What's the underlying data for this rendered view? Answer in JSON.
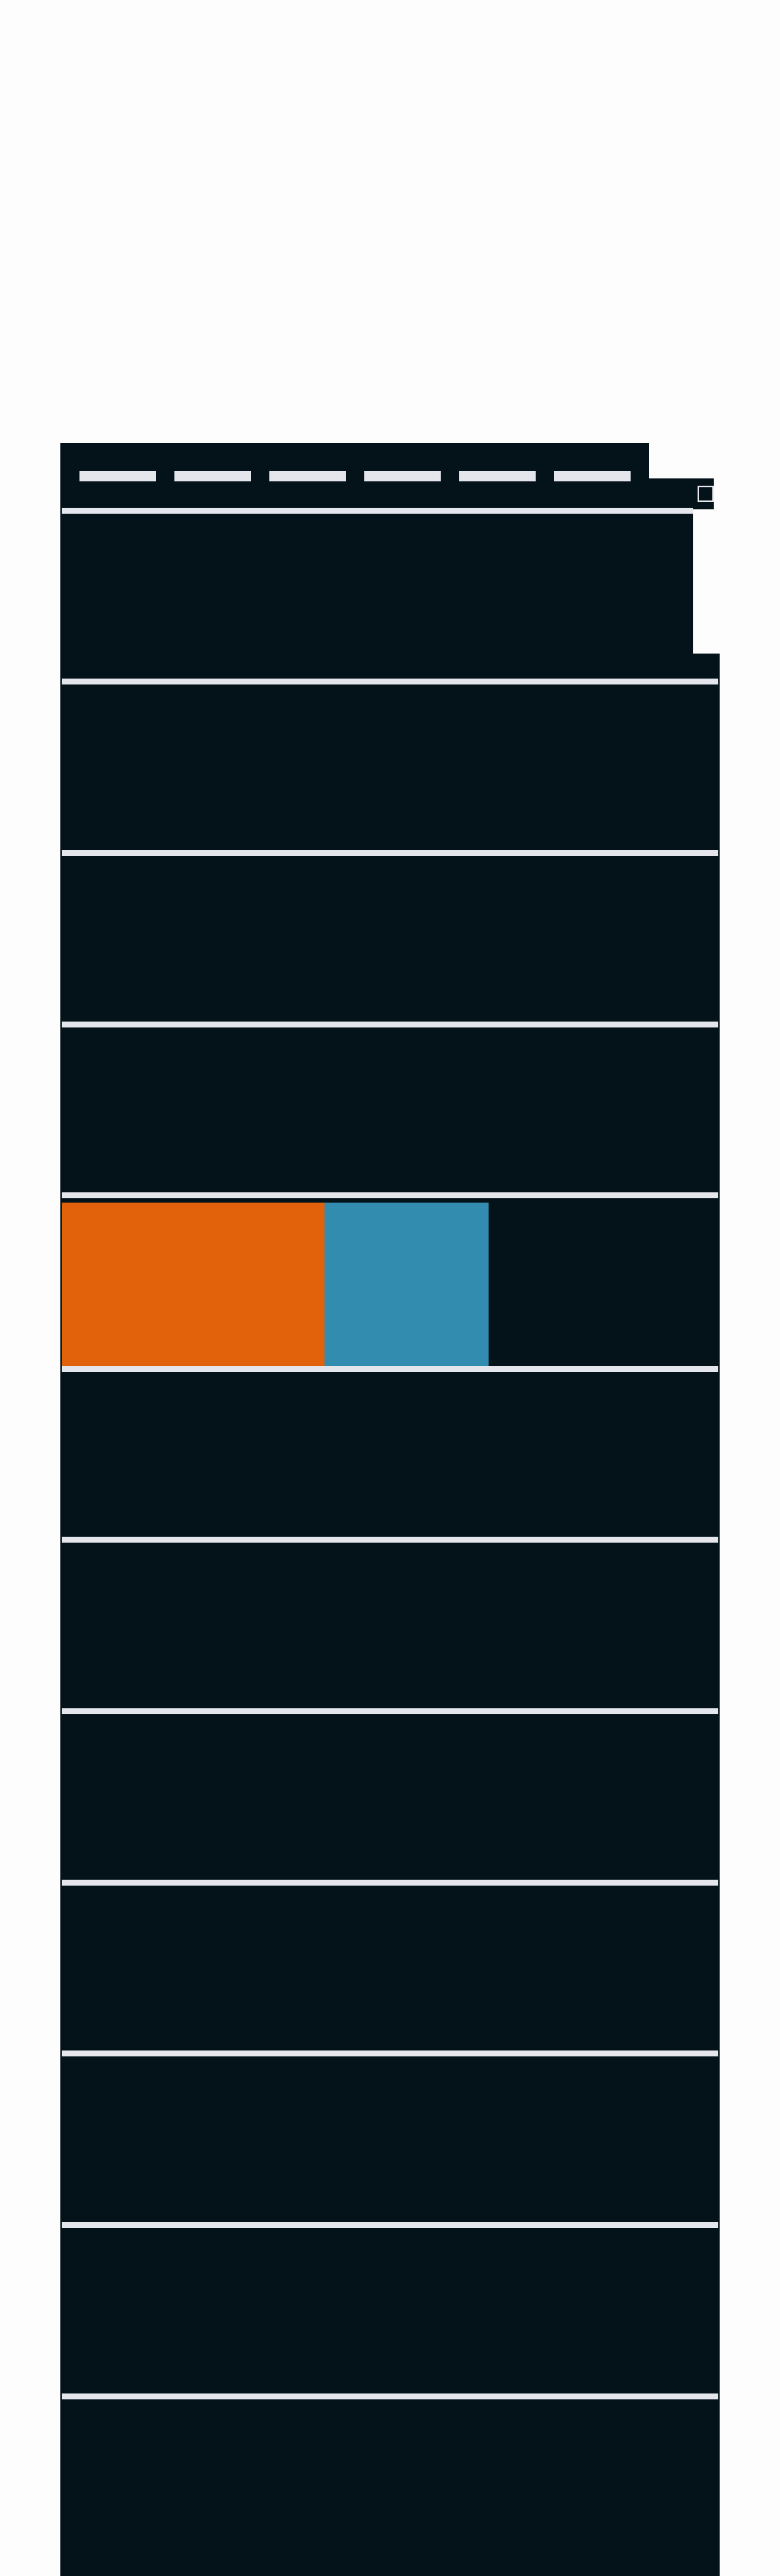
{
  "colors": {
    "background": "#fdfdfd",
    "tower": "#04131a",
    "floor_lines": "#e4e6ec",
    "bar_orange": "#e2620c",
    "bar_blue": "#328cb0"
  },
  "floors": 12,
  "highlighted_floor": 5,
  "dash_count": 6,
  "highlight_bars": [
    {
      "color": "#e2620c",
      "fraction_of_width": 0.4
    },
    {
      "color": "#328cb0",
      "fraction_of_width": 0.25
    }
  ]
}
